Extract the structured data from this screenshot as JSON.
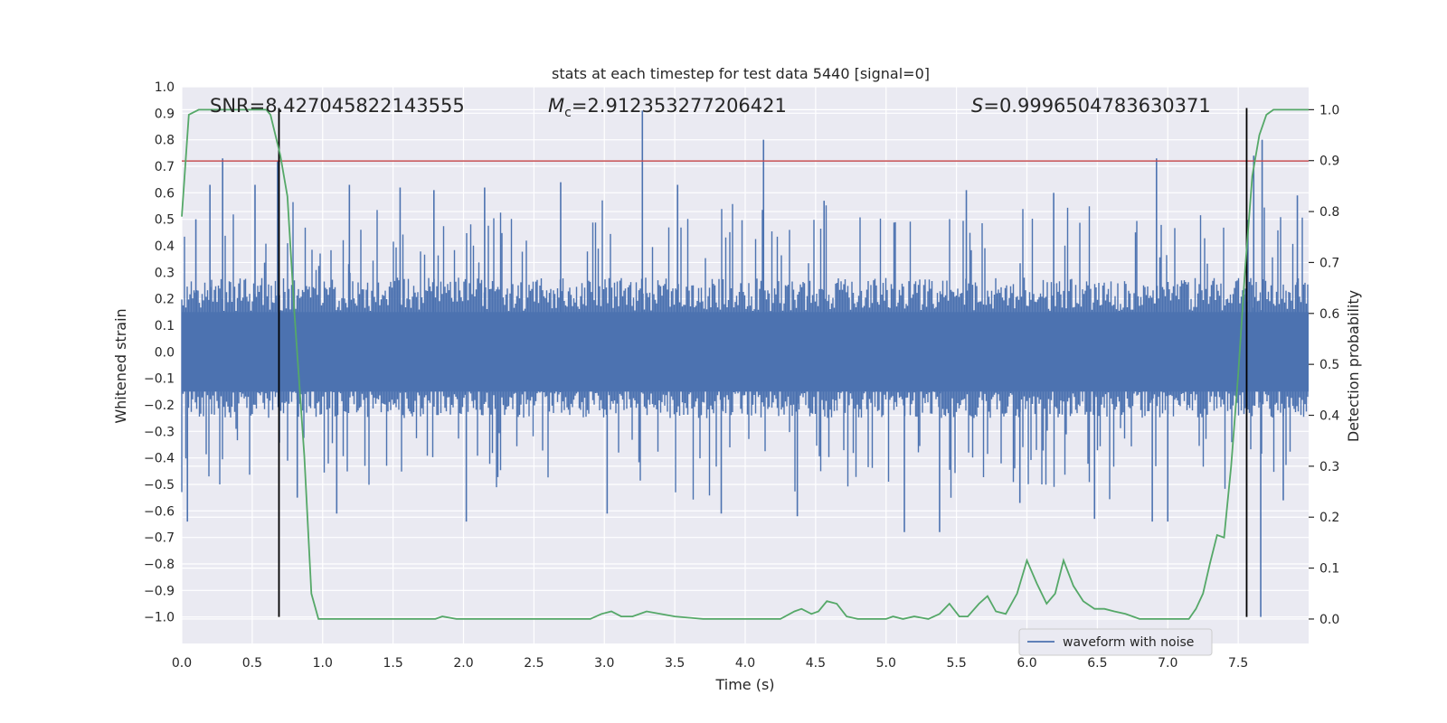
{
  "chart_data": {
    "type": "line",
    "title": "stats at each timestep for test data 5440 [signal=0]",
    "xlabel": "Time (s)",
    "ylabel": "Whitened strain",
    "ylabel_right": "Detection probability",
    "xlim": [
      0.0,
      8.0
    ],
    "ylim": [
      -1.1,
      1.0
    ],
    "ylim_right": [
      -0.048,
      1.045
    ],
    "x_ticks": [
      "0.0",
      "0.5",
      "1.0",
      "1.5",
      "2.0",
      "2.5",
      "3.0",
      "3.5",
      "4.0",
      "4.5",
      "5.0",
      "5.5",
      "6.0",
      "6.5",
      "7.0",
      "7.5"
    ],
    "y_ticks": [
      "1.0",
      "0.9",
      "0.8",
      "0.7",
      "0.6",
      "0.5",
      "0.4",
      "0.3",
      "0.2",
      "0.1",
      "0.0",
      "−0.1",
      "−0.2",
      "−0.3",
      "−0.4",
      "−0.5",
      "−0.6",
      "−0.7",
      "−0.8",
      "−0.9",
      "−1.0"
    ],
    "y_ticks_right": [
      "1.0",
      "0.9",
      "0.8",
      "0.7",
      "0.6",
      "0.5",
      "0.4",
      "0.3",
      "0.2",
      "0.1",
      "0.0"
    ],
    "grid": true,
    "legend_placement": "lower-right",
    "annotations": {
      "snr": "SNR=8.427045822143555",
      "mc_symbol": "M",
      "mc_sub": "c",
      "mc_value": "=2.912353277206421",
      "s_symbol": "S",
      "s_value": "=0.9996504783630371"
    },
    "threshold_line": {
      "y": 0.72,
      "color": "#c44e52"
    },
    "vertical_lines": [
      0.69,
      7.56
    ],
    "vertical_line_range": [
      -1.0,
      0.92
    ],
    "series": [
      {
        "name": "waveform with noise",
        "axis": "left",
        "color": "#4c72b0",
        "description": "dense noisy strain",
        "typical_band": [
          -0.25,
          0.28
        ],
        "spikes": [
          {
            "x": 0.04,
            "y": -0.64
          },
          {
            "x": 0.1,
            "y": 0.5
          },
          {
            "x": 0.2,
            "y": 0.63
          },
          {
            "x": 0.29,
            "y": 0.73
          },
          {
            "x": 0.52,
            "y": 0.63
          },
          {
            "x": 0.68,
            "y": 0.72
          },
          {
            "x": 0.82,
            "y": -0.55
          },
          {
            "x": 1.1,
            "y": -0.61
          },
          {
            "x": 1.19,
            "y": 0.63
          },
          {
            "x": 1.55,
            "y": 0.62
          },
          {
            "x": 1.79,
            "y": 0.61
          },
          {
            "x": 2.02,
            "y": -0.64
          },
          {
            "x": 2.15,
            "y": 0.62
          },
          {
            "x": 2.69,
            "y": 0.64
          },
          {
            "x": 3.02,
            "y": -0.61
          },
          {
            "x": 3.27,
            "y": 0.91
          },
          {
            "x": 3.52,
            "y": 0.63
          },
          {
            "x": 3.83,
            "y": -0.61
          },
          {
            "x": 4.13,
            "y": 0.8
          },
          {
            "x": 4.37,
            "y": -0.62
          },
          {
            "x": 4.56,
            "y": 0.57
          },
          {
            "x": 5.13,
            "y": -0.68
          },
          {
            "x": 5.38,
            "y": -0.68
          },
          {
            "x": 5.57,
            "y": 0.61
          },
          {
            "x": 5.95,
            "y": -0.57
          },
          {
            "x": 6.19,
            "y": 0.6
          },
          {
            "x": 6.48,
            "y": -0.63
          },
          {
            "x": 6.89,
            "y": -0.64
          },
          {
            "x": 6.92,
            "y": 0.73
          },
          {
            "x": 7.0,
            "y": -0.64
          },
          {
            "x": 7.61,
            "y": 0.74
          },
          {
            "x": 7.66,
            "y": -1.0
          },
          {
            "x": 7.67,
            "y": 0.8
          },
          {
            "x": 7.82,
            "y": -0.56
          },
          {
            "x": 7.92,
            "y": 0.59
          }
        ]
      },
      {
        "name": "",
        "axis": "right",
        "color": "#55a868",
        "x": [
          0.0,
          0.05,
          0.12,
          0.2,
          0.3,
          0.4,
          0.5,
          0.6,
          0.63,
          0.7,
          0.75,
          0.8,
          0.87,
          0.92,
          0.97,
          1.05,
          1.2,
          1.4,
          1.6,
          1.8,
          1.85,
          1.95,
          2.0,
          2.2,
          2.4,
          2.6,
          2.8,
          2.9,
          2.98,
          3.05,
          3.12,
          3.2,
          3.3,
          3.5,
          3.7,
          3.9,
          4.1,
          4.25,
          4.35,
          4.4,
          4.47,
          4.52,
          4.58,
          4.65,
          4.72,
          4.8,
          4.9,
          5.0,
          5.05,
          5.12,
          5.2,
          5.3,
          5.38,
          5.45,
          5.52,
          5.58,
          5.66,
          5.72,
          5.78,
          5.85,
          5.93,
          6.0,
          6.07,
          6.14,
          6.2,
          6.26,
          6.33,
          6.4,
          6.48,
          6.55,
          6.62,
          6.7,
          6.8,
          6.9,
          7.0,
          7.08,
          7.15,
          7.2,
          7.25,
          7.3,
          7.35,
          7.4,
          7.45,
          7.5,
          7.55,
          7.6,
          7.65,
          7.7,
          7.75,
          7.8,
          7.9,
          8.0
        ],
        "y": [
          0.79,
          0.99,
          1.0,
          1.0,
          1.0,
          1.0,
          1.0,
          1.0,
          0.99,
          0.91,
          0.83,
          0.6,
          0.32,
          0.05,
          0.0,
          0.0,
          0.0,
          0.0,
          0.0,
          0.0,
          0.005,
          0.0,
          0.0,
          0.0,
          0.0,
          0.0,
          0.0,
          0.0,
          0.01,
          0.015,
          0.005,
          0.005,
          0.015,
          0.005,
          0.0,
          0.0,
          0.0,
          0.0,
          0.015,
          0.02,
          0.01,
          0.015,
          0.035,
          0.03,
          0.005,
          0.0,
          0.0,
          0.0,
          0.005,
          0.0,
          0.005,
          0.0,
          0.01,
          0.03,
          0.005,
          0.005,
          0.03,
          0.045,
          0.015,
          0.01,
          0.05,
          0.115,
          0.07,
          0.03,
          0.05,
          0.115,
          0.065,
          0.035,
          0.02,
          0.02,
          0.015,
          0.01,
          0.0,
          0.0,
          0.0,
          0.0,
          0.0,
          0.02,
          0.05,
          0.11,
          0.165,
          0.16,
          0.3,
          0.48,
          0.69,
          0.87,
          0.95,
          0.99,
          1.0,
          1.0,
          1.0,
          1.0
        ]
      }
    ]
  }
}
